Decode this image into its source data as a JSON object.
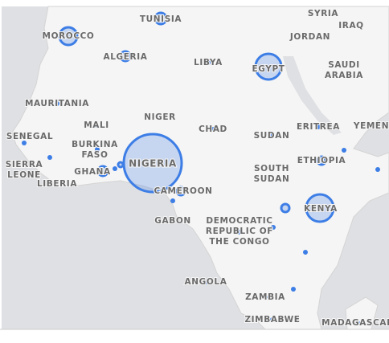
{
  "map": {
    "labels": [
      {
        "lines": [
          "SYRIA"
        ]
      },
      {
        "lines": [
          "IRAQ"
        ]
      },
      {
        "lines": [
          "TUNISIA"
        ]
      },
      {
        "lines": [
          "MOROCCO"
        ]
      },
      {
        "lines": [
          "JORDAN"
        ]
      },
      {
        "lines": [
          "ALGERIA"
        ]
      },
      {
        "lines": [
          "LIBYA"
        ]
      },
      {
        "lines": [
          "EGYPT"
        ]
      },
      {
        "lines": [
          "SAUDI",
          "ARABIA"
        ]
      },
      {
        "lines": [
          "MAURITANIA"
        ]
      },
      {
        "lines": [
          "MALI"
        ]
      },
      {
        "lines": [
          "NIGER"
        ]
      },
      {
        "lines": [
          "CHAD"
        ]
      },
      {
        "lines": [
          "SUDAN"
        ]
      },
      {
        "lines": [
          "ERITREA"
        ]
      },
      {
        "lines": [
          "YEMEN"
        ]
      },
      {
        "lines": [
          "SENEGAL"
        ]
      },
      {
        "lines": [
          "BURKINA",
          "FASO"
        ]
      },
      {
        "lines": [
          "SIERRA",
          "LEONE"
        ]
      },
      {
        "lines": [
          "GHANA"
        ]
      },
      {
        "lines": [
          "LIBERIA"
        ]
      },
      {
        "lines": [
          "NIGERIA"
        ]
      },
      {
        "lines": [
          "SOUTH",
          "SUDAN"
        ]
      },
      {
        "lines": [
          "ETHIOPIA"
        ]
      },
      {
        "lines": [
          "CAMEROON"
        ]
      },
      {
        "lines": [
          "KENYA"
        ]
      },
      {
        "lines": [
          "GABON"
        ]
      },
      {
        "lines": [
          "DEMOCRATIC",
          "REPUBLIC OF",
          "THE CONGO"
        ]
      },
      {
        "lines": [
          "ANGOLA"
        ]
      },
      {
        "lines": [
          "ZAMBIA"
        ]
      },
      {
        "lines": [
          "ZIMBABWE"
        ]
      },
      {
        "lines": [
          "MADAGASCAR"
        ]
      }
    ]
  }
}
